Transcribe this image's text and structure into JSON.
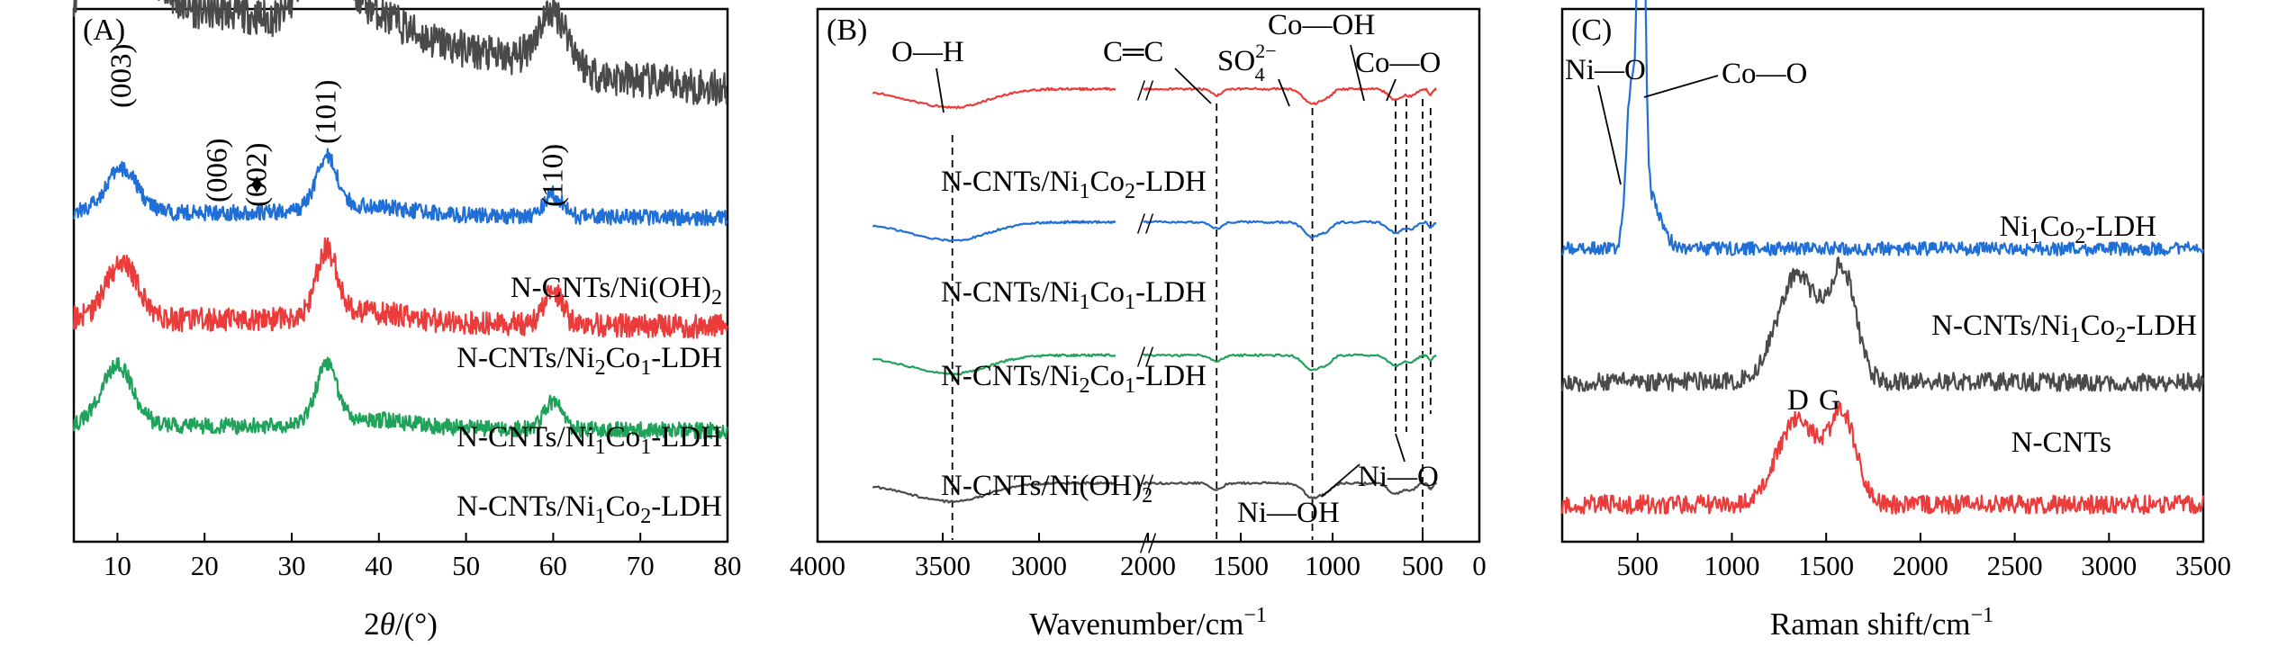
{
  "colors": {
    "black": "#4a4a4a",
    "blue": "#1f6fd6",
    "red": "#ec3b3b",
    "green": "#1fa35a"
  },
  "chart_data": [
    {
      "type": "line",
      "panel": "(A)",
      "title": "",
      "xlabel_main": "2",
      "xlabel_italic": "θ",
      "xlabel_rest": "/(°)",
      "ylabel": "",
      "xlim": [
        5,
        80
      ],
      "xticks": [
        10,
        20,
        30,
        40,
        50,
        60,
        70,
        80
      ],
      "peaks": [
        {
          "label": "(003)",
          "x": 10.5
        },
        {
          "label": "(006)",
          "x": 21.5
        },
        {
          "label": "(002)",
          "x": 26
        },
        {
          "label": "(101)",
          "x": 34
        },
        {
          "label": "(110)",
          "x": 60
        }
      ],
      "diamond_x": 26,
      "series": [
        {
          "name": "N-CNTs/Ni(OH)2",
          "main": "N-CNTs/Ni(OH)",
          "sub": "2",
          "rest": "",
          "color": "black",
          "offset": 0.9,
          "noise": 0.07,
          "features": [
            [
              10,
              0.55,
              3.5
            ],
            [
              22,
              0.2,
              8
            ],
            [
              33.5,
              0.55,
              2.0
            ],
            [
              38,
              0.18,
              4
            ],
            [
              60,
              0.33,
              1.8
            ],
            [
              45,
              0.12,
              10
            ]
          ],
          "baseline_start": 0.25,
          "baseline_end": 0.0
        },
        {
          "name": "N-CNTs/Ni2Co1-LDH",
          "main": "N-CNTs/Ni",
          "sub": "2",
          "rest": "Co",
          "sub2": "1",
          "rest2": "-LDH",
          "color": "blue",
          "offset": 0.62,
          "noise": 0.03,
          "features": [
            [
              10.5,
              0.25,
              1.8
            ],
            [
              34,
              0.3,
              1.2
            ],
            [
              60,
              0.13,
              1.0
            ],
            [
              38,
              0.05,
              5
            ]
          ],
          "baseline_start": 0.0,
          "baseline_end": -0.03
        },
        {
          "name": "N-CNTs/Ni1Co1-LDH",
          "main": "N-CNTs/Ni",
          "sub": "1",
          "rest": "Co",
          "sub2": "1",
          "rest2": "-LDH",
          "color": "red",
          "offset": 0.42,
          "noise": 0.045,
          "features": [
            [
              10.5,
              0.33,
              1.8
            ],
            [
              34,
              0.38,
              1.2
            ],
            [
              60,
              0.2,
              1.0
            ],
            [
              38,
              0.06,
              5
            ]
          ],
          "baseline_start": 0.0,
          "baseline_end": -0.04
        },
        {
          "name": "N-CNTs/Ni1Co2-LDH",
          "main": "N-CNTs/Ni",
          "sub": "1",
          "rest": "Co",
          "sub2": "2",
          "rest2": "-LDH",
          "color": "green",
          "offset": 0.22,
          "noise": 0.03,
          "features": [
            [
              10,
              0.35,
              1.8
            ],
            [
              34,
              0.33,
              1.2
            ],
            [
              60,
              0.16,
              1.0
            ],
            [
              38,
              0.05,
              5
            ]
          ],
          "baseline_start": 0.0,
          "baseline_end": -0.03
        }
      ]
    },
    {
      "type": "line",
      "panel": "(B)",
      "title": "",
      "xlabel": "Wavenumber/cm",
      "xlabel_sup": "−1",
      "ylabel": "",
      "xlim": [
        4000,
        0
      ],
      "xticks": [
        4000,
        3500,
        3000,
        2000,
        1500,
        1000,
        500,
        0
      ],
      "axis_break_label": "//",
      "bands": [
        {
          "label": "O—H",
          "x": 3450
        },
        {
          "label": "C═C",
          "x": 1630
        },
        {
          "label": "SO",
          "sup": "2−",
          "sub": "4",
          "x": 1110
        },
        {
          "label": "Co—OH",
          "x": 650
        },
        {
          "label": "Co—O",
          "x": 560
        }
      ],
      "bottom_bands": [
        {
          "label": "Ni—OH",
          "x": 1110
        },
        {
          "label": "Ni—O",
          "x": 430
        }
      ],
      "series": [
        {
          "name": "N-CNTs/Ni1Co2-LDH",
          "main": "N-CNTs/Ni",
          "sub": "1",
          "rest": "Co",
          "sub2": "2",
          "rest2": "-LDH",
          "color": "red",
          "level": 0.85
        },
        {
          "name": "N-CNTs/Ni1Co1-LDH",
          "main": "N-CNTs/Ni",
          "sub": "1",
          "rest": "Co",
          "sub2": "1",
          "rest2": "-LDH",
          "color": "blue",
          "level": 0.6
        },
        {
          "name": "N-CNTs/Ni2Co1-LDH",
          "main": "N-CNTs/Ni",
          "sub": "2",
          "rest": "Co",
          "sub2": "1",
          "rest2": "-LDH",
          "color": "green",
          "level": 0.35
        },
        {
          "name": "N-CNTs/Ni(OH)2",
          "main": "N-CNTs/Ni(OH)",
          "sub": "2",
          "rest": "",
          "color": "black",
          "level": 0.11
        }
      ]
    },
    {
      "type": "line",
      "panel": "(C)",
      "title": "",
      "xlabel": "Raman shift/cm",
      "xlabel_sup": "−1",
      "ylabel": "",
      "xlim": [
        100,
        3500
      ],
      "xticks": [
        500,
        1000,
        1500,
        2000,
        2500,
        3000,
        3500
      ],
      "annotations": [
        {
          "label": "Ni—O",
          "x": 465
        },
        {
          "label": "Co—O",
          "x": 520
        },
        {
          "label": "D",
          "x": 1350
        },
        {
          "label": "G",
          "x": 1590
        }
      ],
      "series": [
        {
          "name": "Ni1Co2-LDH",
          "main": "Ni",
          "sub": "1",
          "rest": "Co",
          "sub2": "2",
          "rest2": "-LDH",
          "color": "blue",
          "offset": 0.55,
          "features": [
            [
              465,
              0.28,
              25
            ],
            [
              520,
              0.78,
              18
            ],
            [
              560,
              0.1,
              60
            ]
          ],
          "noise": 0.025
        },
        {
          "name": "N-CNTs/Ni1Co2-LDH",
          "main": "N-CNTs/Ni",
          "sub": "1",
          "rest": "Co",
          "sub2": "2",
          "rest2": "-LDH",
          "color": "black",
          "offset": 0.3,
          "features": [
            [
              1350,
              0.2,
              110
            ],
            [
              1590,
              0.2,
              70
            ]
          ],
          "noise": 0.035
        },
        {
          "name": "N-CNTs",
          "main": "N-CNTs",
          "sub": "",
          "rest": "",
          "color": "red",
          "offset": 0.07,
          "features": [
            [
              1350,
              0.16,
              110
            ],
            [
              1590,
              0.16,
              70
            ]
          ],
          "noise": 0.035
        }
      ]
    }
  ]
}
